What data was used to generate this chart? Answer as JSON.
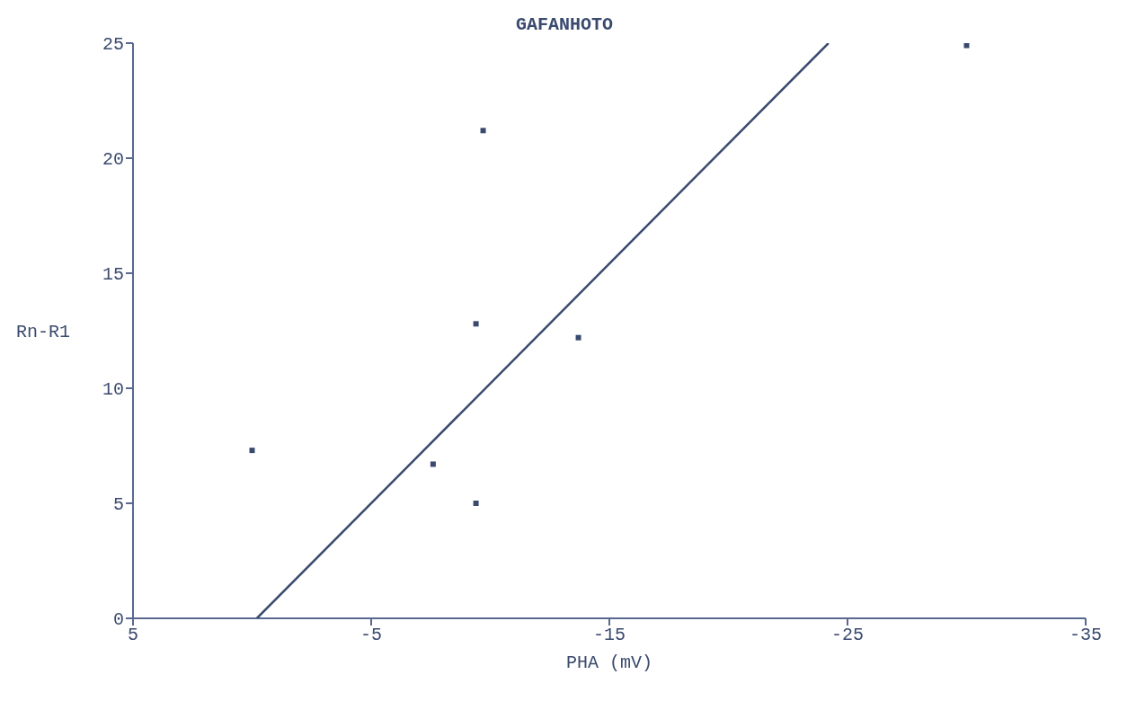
{
  "chart_data": {
    "type": "scatter",
    "title": "GAFANHOTO",
    "xlabel": "PHA (mV)",
    "ylabel": "Rn-R1",
    "grid": false,
    "xlim": [
      5,
      -35
    ],
    "xticks": [
      5,
      -5,
      -15,
      -25,
      -35
    ],
    "ylim": [
      0,
      25
    ],
    "yticks": [
      0,
      5,
      10,
      15,
      20,
      25
    ],
    "series": [
      {
        "marker": "square",
        "color": "#3a4a6e",
        "x": [
          0,
          -7.6,
          -9.4,
          -9.4,
          -9.7,
          -13.7,
          -30
        ],
        "values": [
          7.3,
          6.7,
          5.0,
          12.8,
          21.2,
          12.2,
          24.9
        ]
      },
      {
        "type": "line",
        "marker": "none",
        "color": "#3a4a6e",
        "x": [
          -0.2,
          -24.2
        ],
        "values": [
          0,
          25
        ]
      }
    ]
  }
}
